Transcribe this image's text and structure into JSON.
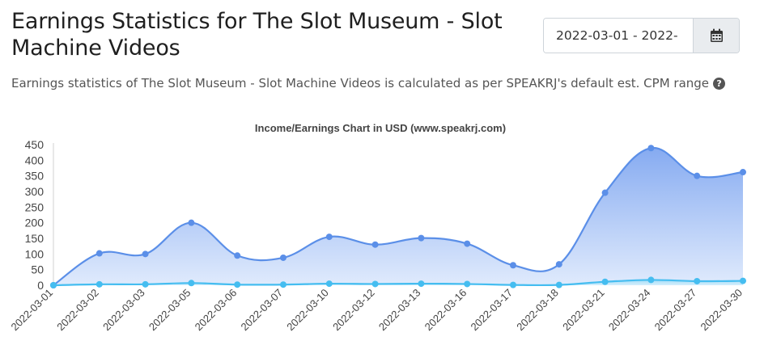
{
  "header": {
    "title": "Earnings Statistics for The Slot Museum - Slot Machine Videos",
    "subtitle": "Earnings statistics of The Slot Museum - Slot Machine Videos is calculated as per SPEAKRJ's default est. CPM range",
    "help_icon": "question-circle-icon"
  },
  "date_range": {
    "value": "2022-03-01 - 2022-",
    "calendar_icon": "calendar-icon"
  },
  "chart_data": {
    "type": "area",
    "title": "Income/Earnings Chart in USD (www.speakrj.com)",
    "categories": [
      "2022-03-01",
      "2022-03-02",
      "2022-03-03",
      "2022-03-05",
      "2022-03-06",
      "2022-03-07",
      "2022-03-10",
      "2022-03-12",
      "2022-03-13",
      "2022-03-16",
      "2022-03-17",
      "2022-03-18",
      "2022-03-21",
      "2022-03-24",
      "2022-03-27",
      "2022-03-30"
    ],
    "yticks": [
      0,
      50,
      100,
      150,
      200,
      250,
      300,
      350,
      400,
      450
    ],
    "ylim": [
      0,
      450
    ],
    "grid": false,
    "series": [
      {
        "values": [
          0,
          102,
          100,
          200,
          95,
          88,
          155,
          130,
          151,
          133,
          64,
          67,
          296,
          439,
          350,
          362
        ],
        "color": "#5b8fe8"
      },
      {
        "values": [
          0,
          3,
          3,
          7,
          2,
          2,
          5,
          4,
          5,
          4,
          1,
          1,
          11,
          17,
          13,
          14
        ],
        "color": "#45bdf0"
      }
    ]
  }
}
